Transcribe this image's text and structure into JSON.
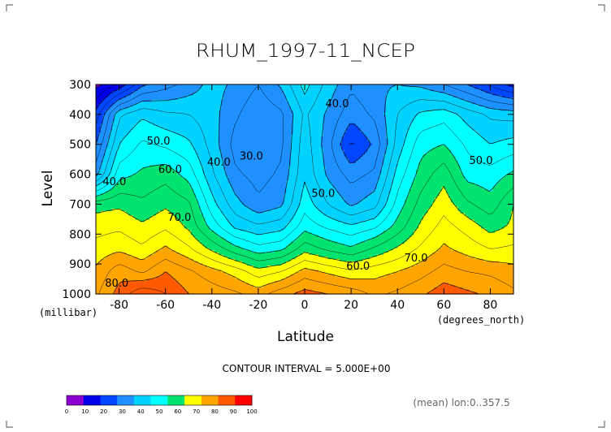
{
  "chart_data": {
    "type": "heatmap",
    "title": "RHUM_1997-11_NCEP",
    "xlabel": "Latitude",
    "x_units": "(degrees_north)",
    "ylabel": "Level",
    "y_units": "(millibar)",
    "xlim": [
      -90,
      90
    ],
    "ylim": [
      1000,
      300
    ],
    "x_ticks": [
      {
        "value": -80,
        "label": "-80"
      },
      {
        "value": -60,
        "label": "-60"
      },
      {
        "value": -40,
        "label": "-40"
      },
      {
        "value": -20,
        "label": "-20"
      },
      {
        "value": 0,
        "label": "0"
      },
      {
        "value": 20,
        "label": "20"
      },
      {
        "value": 40,
        "label": "40"
      },
      {
        "value": 60,
        "label": "60"
      },
      {
        "value": 80,
        "label": "80"
      }
    ],
    "y_ticks": [
      {
        "value": 300,
        "label": "300"
      },
      {
        "value": 400,
        "label": "400"
      },
      {
        "value": 500,
        "label": "500"
      },
      {
        "value": 600,
        "label": "600"
      },
      {
        "value": 700,
        "label": "700"
      },
      {
        "value": 800,
        "label": "800"
      },
      {
        "value": 900,
        "label": "900"
      },
      {
        "value": 1000,
        "label": "1000"
      }
    ],
    "contour_interval_text": "CONTOUR INTERVAL = 5.000E+00",
    "footnote": "(mean) lon:0..357.5",
    "contour_labels": [
      {
        "text": "50.0",
        "x": -63,
        "y": 490
      },
      {
        "text": "60.0",
        "x": -58,
        "y": 585
      },
      {
        "text": "40.0",
        "x": -82,
        "y": 625
      },
      {
        "text": "70.0",
        "x": -54,
        "y": 745
      },
      {
        "text": "80.0",
        "x": -81,
        "y": 965
      },
      {
        "text": "40.0",
        "x": -37,
        "y": 560
      },
      {
        "text": "30.0",
        "x": -23,
        "y": 540
      },
      {
        "text": "40.0",
        "x": 14,
        "y": 365
      },
      {
        "text": "50.0",
        "x": 8,
        "y": 665
      },
      {
        "text": "60.0",
        "x": 23,
        "y": 908
      },
      {
        "text": "70.0",
        "x": 48,
        "y": 880
      },
      {
        "text": "50.0",
        "x": 76,
        "y": 555
      }
    ],
    "colorbar": {
      "bounds": [
        0,
        10,
        20,
        30,
        40,
        50,
        60,
        70,
        80,
        90,
        100
      ],
      "labels": [
        "0",
        "10",
        "20",
        "30",
        "40",
        "50",
        "60",
        "70",
        "80",
        "90",
        "100"
      ],
      "colors": [
        "#8b00d0",
        "#0000e8",
        "#0046ff",
        "#1e90ff",
        "#00d2ff",
        "#00ffff",
        "#00e36e",
        "#ffff00",
        "#ffa500",
        "#ff5a00",
        "#ff0000"
      ]
    },
    "levels": [
      1000,
      925,
      850,
      775,
      700,
      600,
      500,
      400,
      300
    ],
    "latitudes": [
      -90,
      -80,
      -70,
      -60,
      -50,
      -40,
      -30,
      -20,
      -10,
      0,
      10,
      20,
      30,
      40,
      50,
      60,
      70,
      80,
      90
    ],
    "values": [
      [
        84,
        92,
        99,
        95,
        90,
        88,
        86,
        83,
        88,
        92,
        90,
        88,
        84,
        86,
        89,
        93,
        91,
        89,
        86
      ],
      [
        81,
        88,
        84,
        90,
        86,
        82,
        78,
        72,
        75,
        82,
        79,
        76,
        78,
        80,
        83,
        87,
        85,
        84,
        82
      ],
      [
        77,
        79,
        76,
        81,
        76,
        69,
        62,
        57,
        59,
        68,
        64,
        61,
        66,
        71,
        76,
        81,
        78,
        75,
        76
      ],
      [
        73,
        74,
        71,
        74,
        69,
        58,
        49,
        46,
        48,
        58,
        54,
        51,
        54,
        62,
        71,
        77,
        73,
        68,
        71
      ],
      [
        68,
        69,
        66,
        69,
        66,
        52,
        42,
        36,
        39,
        53,
        45,
        39,
        43,
        57,
        67,
        73,
        66,
        62,
        70
      ],
      [
        38,
        58,
        61,
        63,
        58,
        46,
        36,
        33,
        36,
        49,
        39,
        33,
        36,
        52,
        62,
        68,
        58,
        57,
        61
      ],
      [
        30,
        50,
        56,
        54,
        51,
        43,
        33,
        30,
        34,
        48,
        37,
        24,
        31,
        47,
        58,
        60,
        54,
        50,
        52
      ],
      [
        22,
        44,
        49,
        46,
        45,
        42,
        36,
        31,
        34,
        46,
        39,
        32,
        36,
        45,
        51,
        53,
        48,
        44,
        43
      ],
      [
        8,
        16,
        29,
        33,
        37,
        42,
        39,
        35,
        41,
        52,
        43,
        36,
        39,
        40,
        39,
        35,
        30,
        24,
        18
      ]
    ]
  }
}
